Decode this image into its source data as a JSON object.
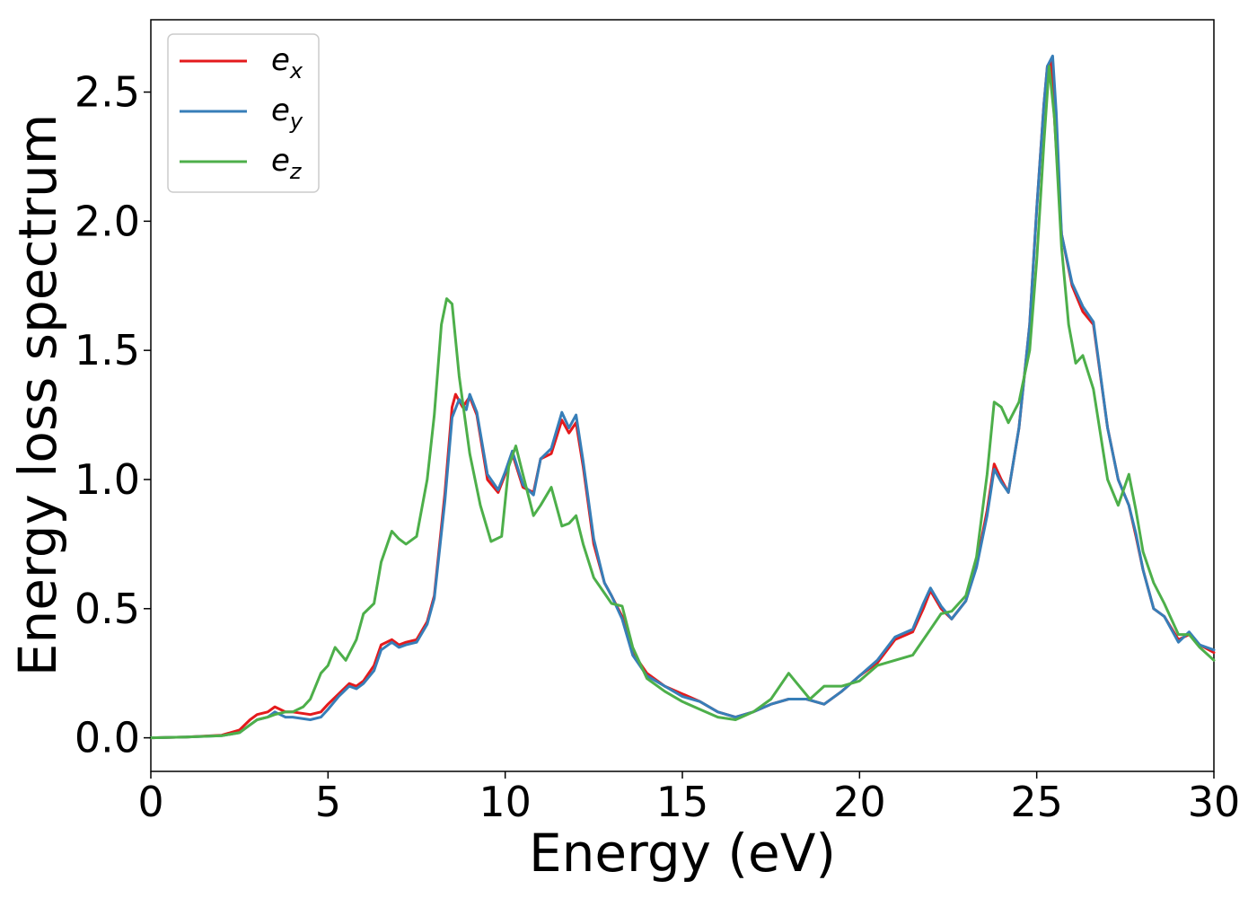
{
  "chart_data": {
    "type": "line",
    "xlabel": "Energy (eV)",
    "ylabel": "Energy loss spectrum",
    "xlim": [
      0,
      30
    ],
    "ylim": [
      -0.13,
      2.78
    ],
    "xticks": [
      0,
      5,
      10,
      15,
      20,
      25,
      30
    ],
    "xtick_labels": [
      "0",
      "5",
      "10",
      "15",
      "20",
      "25",
      "30"
    ],
    "yticks": [
      0.0,
      0.5,
      1.0,
      1.5,
      2.0,
      2.5
    ],
    "ytick_labels": [
      "0.0",
      "0.5",
      "1.0",
      "1.5",
      "2.0",
      "2.5"
    ],
    "grid": false,
    "legend_position": "top-left",
    "series": [
      {
        "name": "e_x",
        "label_base": "e",
        "label_sub": "x",
        "color": "#e41a1c",
        "x": [
          0,
          1,
          2,
          2.5,
          2.8,
          3.0,
          3.3,
          3.5,
          3.8,
          4.0,
          4.5,
          4.8,
          5.0,
          5.3,
          5.6,
          5.8,
          6.0,
          6.3,
          6.5,
          6.8,
          7.0,
          7.2,
          7.5,
          7.8,
          8.0,
          8.3,
          8.5,
          8.6,
          8.8,
          9.0,
          9.2,
          9.5,
          9.8,
          10.0,
          10.2,
          10.5,
          10.8,
          11.0,
          11.3,
          11.6,
          11.8,
          12.0,
          12.2,
          12.5,
          12.8,
          13.0,
          13.3,
          13.6,
          14.0,
          14.5,
          15.0,
          15.5,
          16.0,
          16.5,
          17.0,
          17.5,
          18.0,
          18.5,
          19.0,
          19.5,
          20.0,
          20.5,
          21.0,
          21.5,
          21.8,
          22.0,
          22.3,
          22.6,
          23.0,
          23.3,
          23.6,
          23.8,
          24.0,
          24.2,
          24.5,
          24.8,
          25.0,
          25.2,
          25.3,
          25.4,
          25.5,
          25.7,
          26.0,
          26.3,
          26.6,
          27.0,
          27.3,
          27.6,
          27.8,
          28.0,
          28.3,
          28.6,
          29.0,
          29.3,
          29.6,
          30.0
        ],
        "y": [
          0.0,
          0.003,
          0.01,
          0.03,
          0.07,
          0.09,
          0.1,
          0.12,
          0.1,
          0.1,
          0.09,
          0.1,
          0.13,
          0.17,
          0.21,
          0.2,
          0.22,
          0.28,
          0.36,
          0.38,
          0.36,
          0.37,
          0.38,
          0.45,
          0.55,
          0.95,
          1.28,
          1.33,
          1.28,
          1.32,
          1.25,
          1.0,
          0.95,
          1.02,
          1.1,
          0.97,
          0.95,
          1.08,
          1.1,
          1.23,
          1.18,
          1.22,
          1.05,
          0.75,
          0.6,
          0.55,
          0.47,
          0.33,
          0.25,
          0.2,
          0.17,
          0.14,
          0.1,
          0.08,
          0.1,
          0.13,
          0.15,
          0.15,
          0.13,
          0.18,
          0.24,
          0.29,
          0.38,
          0.41,
          0.5,
          0.57,
          0.5,
          0.46,
          0.53,
          0.67,
          0.88,
          1.06,
          1.0,
          0.95,
          1.2,
          1.6,
          2.05,
          2.45,
          2.6,
          2.62,
          2.4,
          1.95,
          1.75,
          1.65,
          1.6,
          1.2,
          1.0,
          0.9,
          0.78,
          0.65,
          0.5,
          0.47,
          0.38,
          0.4,
          0.36,
          0.33
        ]
      },
      {
        "name": "e_y",
        "label_base": "e",
        "label_sub": "y",
        "color": "#377eb8",
        "x": [
          0,
          1,
          2,
          2.5,
          2.8,
          3.0,
          3.3,
          3.5,
          3.8,
          4.0,
          4.5,
          4.8,
          5.0,
          5.3,
          5.6,
          5.8,
          6.0,
          6.3,
          6.5,
          6.8,
          7.0,
          7.2,
          7.5,
          7.8,
          8.0,
          8.3,
          8.5,
          8.7,
          8.9,
          9.0,
          9.2,
          9.5,
          9.8,
          10.0,
          10.2,
          10.5,
          10.8,
          11.0,
          11.3,
          11.6,
          11.8,
          12.0,
          12.2,
          12.5,
          12.8,
          13.0,
          13.3,
          13.6,
          14.0,
          14.5,
          15.0,
          15.5,
          16.0,
          16.5,
          17.0,
          17.5,
          18.0,
          18.5,
          19.0,
          19.5,
          20.0,
          20.5,
          21.0,
          21.5,
          21.8,
          22.0,
          22.3,
          22.6,
          23.0,
          23.3,
          23.6,
          23.8,
          24.0,
          24.2,
          24.5,
          24.8,
          25.0,
          25.2,
          25.3,
          25.45,
          25.55,
          25.7,
          26.0,
          26.3,
          26.6,
          27.0,
          27.3,
          27.6,
          27.8,
          28.0,
          28.3,
          28.6,
          29.0,
          29.3,
          29.6,
          30.0
        ],
        "y": [
          0.0,
          0.003,
          0.008,
          0.02,
          0.05,
          0.07,
          0.08,
          0.1,
          0.08,
          0.08,
          0.07,
          0.08,
          0.11,
          0.16,
          0.2,
          0.19,
          0.21,
          0.26,
          0.34,
          0.37,
          0.35,
          0.36,
          0.37,
          0.44,
          0.54,
          0.92,
          1.24,
          1.31,
          1.27,
          1.33,
          1.26,
          1.02,
          0.96,
          1.03,
          1.11,
          0.98,
          0.94,
          1.08,
          1.12,
          1.26,
          1.2,
          1.25,
          1.07,
          0.77,
          0.6,
          0.55,
          0.46,
          0.32,
          0.24,
          0.2,
          0.16,
          0.14,
          0.1,
          0.08,
          0.1,
          0.13,
          0.15,
          0.15,
          0.13,
          0.18,
          0.24,
          0.3,
          0.39,
          0.42,
          0.52,
          0.58,
          0.51,
          0.46,
          0.53,
          0.66,
          0.86,
          1.04,
          0.99,
          0.95,
          1.2,
          1.6,
          2.05,
          2.45,
          2.6,
          2.64,
          2.42,
          1.95,
          1.76,
          1.67,
          1.61,
          1.2,
          1.0,
          0.9,
          0.79,
          0.65,
          0.5,
          0.47,
          0.37,
          0.41,
          0.36,
          0.34
        ]
      },
      {
        "name": "e_z",
        "label_base": "e",
        "label_sub": "z",
        "color": "#4daf4a",
        "x": [
          0,
          1,
          2,
          2.5,
          2.8,
          3.0,
          3.3,
          3.5,
          3.8,
          4.0,
          4.3,
          4.5,
          4.8,
          5.0,
          5.2,
          5.5,
          5.8,
          6.0,
          6.3,
          6.5,
          6.8,
          7.0,
          7.2,
          7.5,
          7.8,
          8.0,
          8.2,
          8.35,
          8.5,
          8.7,
          9.0,
          9.3,
          9.6,
          9.9,
          10.1,
          10.3,
          10.5,
          10.8,
          11.0,
          11.3,
          11.6,
          11.8,
          12.0,
          12.2,
          12.5,
          12.8,
          13.0,
          13.3,
          13.6,
          14.0,
          14.5,
          15.0,
          15.5,
          16.0,
          16.5,
          17.0,
          17.5,
          18.0,
          18.3,
          18.6,
          19.0,
          19.5,
          20.0,
          20.5,
          21.0,
          21.5,
          22.0,
          22.3,
          22.6,
          23.0,
          23.3,
          23.6,
          23.8,
          24.0,
          24.2,
          24.5,
          24.8,
          25.0,
          25.2,
          25.35,
          25.5,
          25.7,
          25.9,
          26.1,
          26.3,
          26.6,
          27.0,
          27.3,
          27.6,
          27.8,
          28.0,
          28.3,
          28.6,
          29.0,
          29.3,
          29.6,
          30.0
        ],
        "y": [
          0.0,
          0.003,
          0.008,
          0.02,
          0.05,
          0.07,
          0.08,
          0.09,
          0.1,
          0.1,
          0.12,
          0.15,
          0.25,
          0.28,
          0.35,
          0.3,
          0.38,
          0.48,
          0.52,
          0.68,
          0.8,
          0.77,
          0.75,
          0.78,
          1.0,
          1.25,
          1.6,
          1.7,
          1.68,
          1.4,
          1.1,
          0.9,
          0.76,
          0.78,
          1.05,
          1.13,
          1.02,
          0.86,
          0.9,
          0.97,
          0.82,
          0.83,
          0.86,
          0.75,
          0.62,
          0.56,
          0.52,
          0.51,
          0.35,
          0.23,
          0.18,
          0.14,
          0.11,
          0.08,
          0.07,
          0.1,
          0.15,
          0.25,
          0.2,
          0.15,
          0.2,
          0.2,
          0.22,
          0.28,
          0.3,
          0.32,
          0.42,
          0.48,
          0.49,
          0.55,
          0.7,
          1.02,
          1.3,
          1.28,
          1.22,
          1.3,
          1.5,
          1.85,
          2.3,
          2.6,
          2.4,
          1.9,
          1.6,
          1.45,
          1.48,
          1.35,
          1.0,
          0.9,
          1.02,
          0.88,
          0.72,
          0.6,
          0.52,
          0.4,
          0.4,
          0.35,
          0.3
        ]
      }
    ]
  }
}
